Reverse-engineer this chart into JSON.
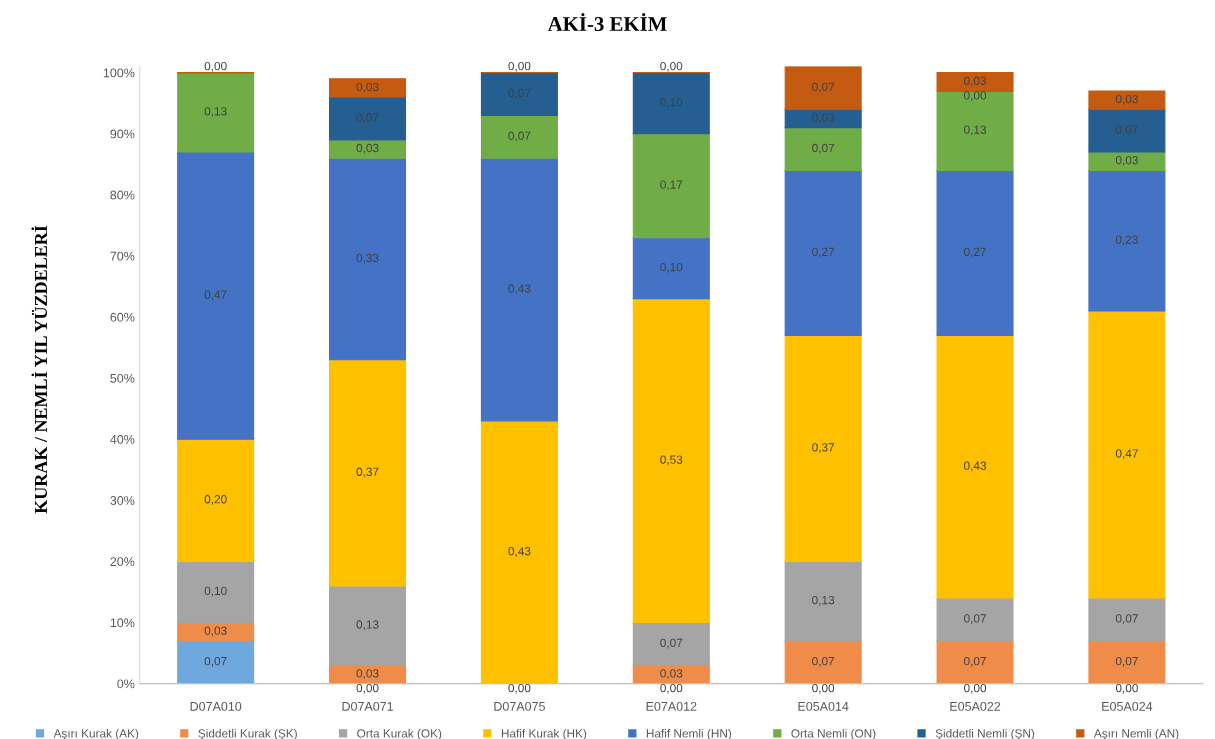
{
  "chart_data": {
    "type": "bar",
    "stacked": true,
    "title": "AKİ-3 EKİM",
    "ylabel": "KURAK / NEMLİ YIL YÜZDELERİ",
    "categories": [
      "D07A010",
      "D07A071",
      "D07A075",
      "E07A012",
      "E05A014",
      "E05A022",
      "E05A024"
    ],
    "ylim": [
      0,
      1.01
    ],
    "yticks": [
      {
        "value": 0,
        "label": "0%"
      },
      {
        "value": 0.1,
        "label": "10%"
      },
      {
        "value": 0.2,
        "label": "20%"
      },
      {
        "value": 0.3,
        "label": "30%"
      },
      {
        "value": 0.4,
        "label": "40%"
      },
      {
        "value": 0.5,
        "label": "50%"
      },
      {
        "value": 0.6,
        "label": "60%"
      },
      {
        "value": 0.7,
        "label": "70%"
      },
      {
        "value": 0.8,
        "label": "80%"
      },
      {
        "value": 0.9,
        "label": "90%"
      },
      {
        "value": 1,
        "label": "100%"
      }
    ],
    "grid": false,
    "legend": "bottom",
    "series": [
      {
        "name": "Aşırı Kurak (AK)",
        "color": "#6fa8dc",
        "values": [
          0.07,
          0,
          0,
          0,
          0,
          0,
          0
        ],
        "value_labels": [
          "0,07",
          "0,00",
          "0,00",
          "0,00",
          "0,00",
          "0,00",
          "0,00"
        ]
      },
      {
        "name": "Şiddetli Kurak (ŞK)",
        "color": "#f08c4a",
        "values": [
          0.03,
          0.03,
          0,
          0.03,
          0.07,
          0.07,
          0.07
        ],
        "value_labels": [
          "0,03",
          "0,03",
          null,
          "0,03",
          "0,07",
          "0,07",
          "0,07"
        ]
      },
      {
        "name": "Orta Kurak (OK)",
        "color": "#a5a5a5",
        "values": [
          0.1,
          0.13,
          0,
          0.07,
          0.13,
          0.07,
          0.07
        ],
        "value_labels": [
          "0,10",
          "0,13",
          null,
          "0,07",
          "0,13",
          "0,07",
          "0,07"
        ]
      },
      {
        "name": "Hafif Kurak (HK)",
        "color": "#ffc000",
        "values": [
          0.2,
          0.37,
          0.43,
          0.53,
          0.37,
          0.43,
          0.47
        ],
        "value_labels": [
          "0,20",
          "0,37",
          "0,43",
          "0,53",
          "0,37",
          "0,43",
          "0,47"
        ]
      },
      {
        "name": "Hafif Nemli (HN)",
        "color": "#4472c4",
        "values": [
          0.47,
          0.33,
          0.43,
          0.1,
          0.27,
          0.27,
          0.23
        ],
        "value_labels": [
          "0,47",
          "0,33",
          "0,43",
          "0,10",
          "0,27",
          "0,27",
          "0,23"
        ]
      },
      {
        "name": "Orta Nemli (ON)",
        "color": "#70ad47",
        "values": [
          0.13,
          0.03,
          0.07,
          0.17,
          0.07,
          0.13,
          0.03
        ],
        "value_labels": [
          "0,13",
          "0,03",
          "0,07",
          "0,17",
          "0,07",
          "0,13",
          "0,03"
        ]
      },
      {
        "name": "Şiddetli Nemli (ŞN)",
        "color": "#255e91",
        "values": [
          0,
          0.07,
          0.07,
          0.1,
          0.03,
          0,
          0.07
        ],
        "value_labels": [
          null,
          "0,07",
          "0,07",
          "0,10",
          "0,03",
          "0,00",
          "0,07"
        ]
      },
      {
        "name": "Aşırı Nemli (AN)",
        "color": "#c55a11",
        "values": [
          0,
          0.03,
          0,
          0,
          0.07,
          0.03,
          0.03
        ],
        "value_labels": [
          "0,00",
          "0,03",
          "0,00",
          "0,00",
          "0,07",
          "0,03",
          "0,03"
        ]
      }
    ]
  }
}
